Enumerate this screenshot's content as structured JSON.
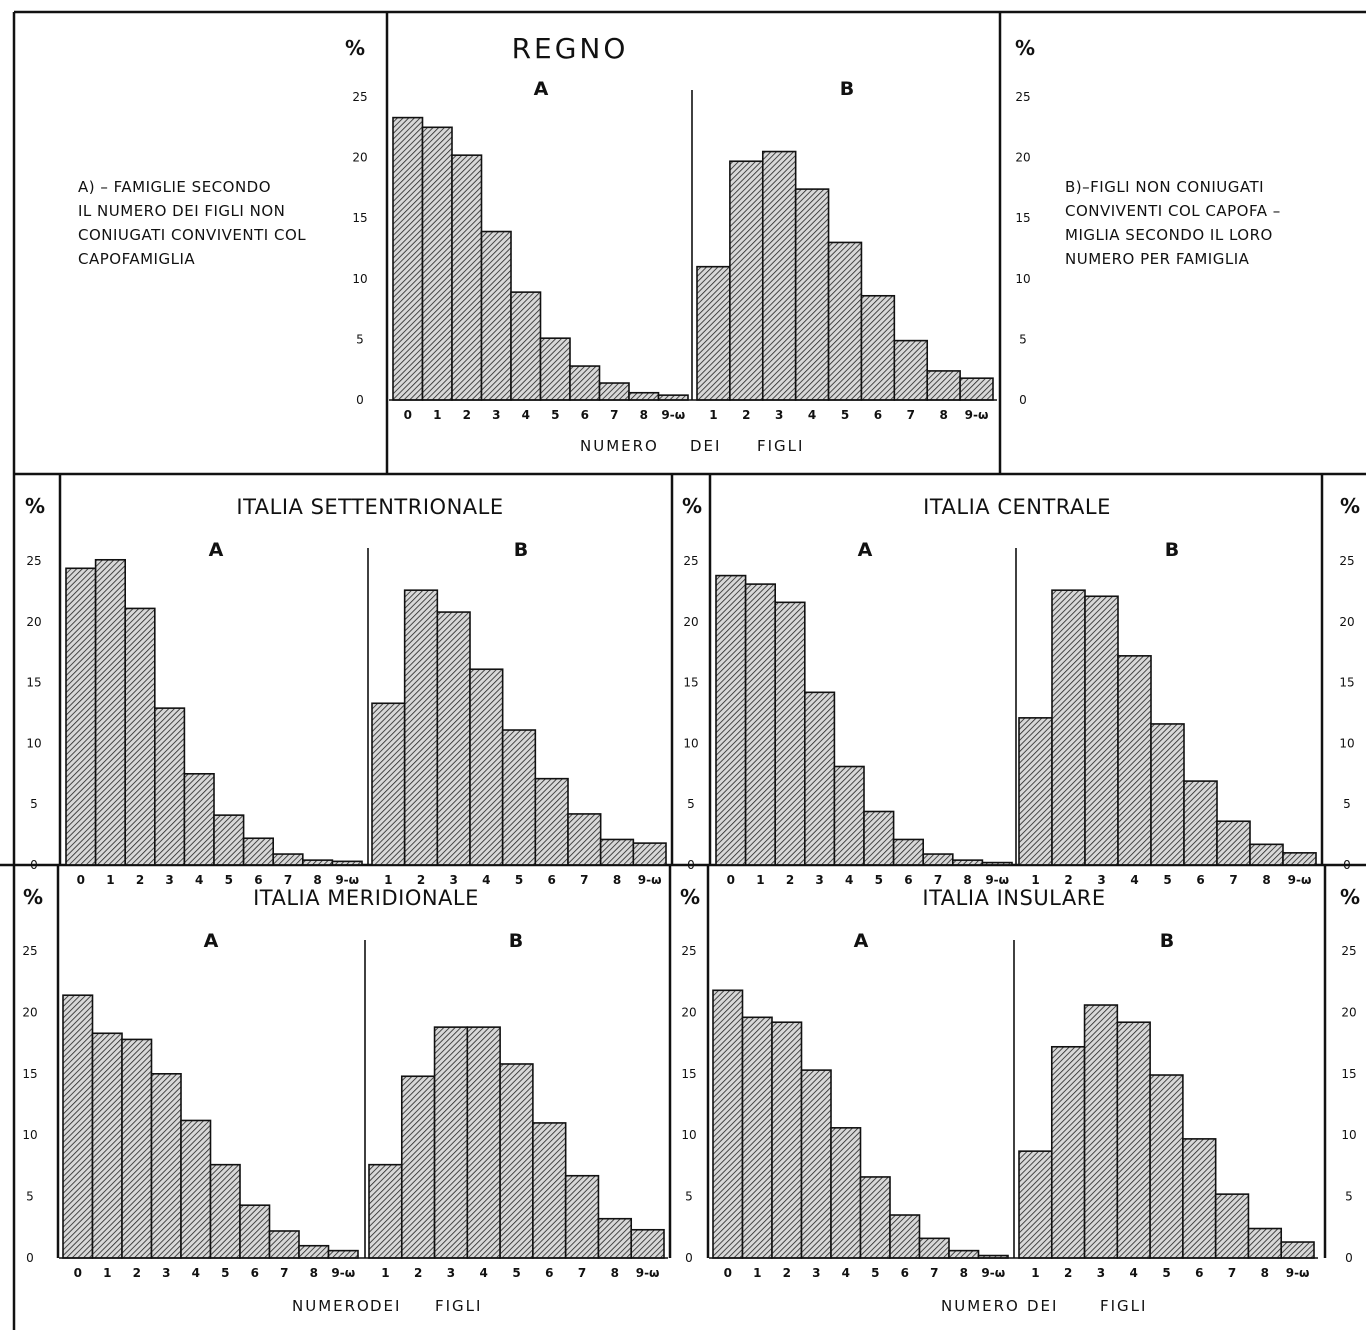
{
  "legend_a": [
    "A) – FAMIGLIE   SECONDO",
    "IL NUMERO DEI FIGLI NON",
    "CONIUGATI CONVIVENTI COL",
    "CAPOFAMIGLIA"
  ],
  "legend_b": [
    "B)–FIGLI  NON  CONIUGATI",
    "CONVIVENTI COL CAPOFA –",
    "MIGLIA SECONDO IL LORO",
    "NUMERO PER FAMIGLIA"
  ],
  "percent_symbol": "%",
  "xlabel_words": [
    "NUMERO",
    "DEI",
    "FIGLI"
  ],
  "y_ticks": [
    "0",
    "5",
    "10",
    "15",
    "20",
    "25"
  ],
  "chart_data": [
    {
      "id": "regno",
      "type": "bar",
      "title": "REGNO",
      "ylim": [
        0,
        25
      ],
      "xlabel": "NUMERO DEI FIGLI",
      "series": [
        {
          "name": "A",
          "categories": [
            "0",
            "1",
            "2",
            "3",
            "4",
            "5",
            "6",
            "7",
            "8",
            "9-ω"
          ],
          "values": [
            23.3,
            22.5,
            20.2,
            13.9,
            8.9,
            5.1,
            2.8,
            1.4,
            0.6,
            0.4
          ]
        },
        {
          "name": "B",
          "categories": [
            "1",
            "2",
            "3",
            "4",
            "5",
            "6",
            "7",
            "8",
            "9-ω"
          ],
          "values": [
            11.0,
            19.7,
            20.5,
            17.4,
            13.0,
            8.6,
            4.9,
            2.4,
            1.8
          ]
        }
      ]
    },
    {
      "id": "settentrionale",
      "type": "bar",
      "title": "ITALIA SETTENTRIONALE",
      "ylim": [
        0,
        25
      ],
      "series": [
        {
          "name": "A",
          "categories": [
            "0",
            "1",
            "2",
            "3",
            "4",
            "5",
            "6",
            "7",
            "8",
            "9-ω"
          ],
          "values": [
            24.4,
            25.1,
            21.1,
            12.9,
            7.5,
            4.1,
            2.2,
            0.9,
            0.4,
            0.3
          ]
        },
        {
          "name": "B",
          "categories": [
            "1",
            "2",
            "3",
            "4",
            "5",
            "6",
            "7",
            "8",
            "9-ω"
          ],
          "values": [
            13.3,
            22.6,
            20.8,
            16.1,
            11.1,
            7.1,
            4.2,
            2.1,
            1.8
          ]
        }
      ]
    },
    {
      "id": "centrale",
      "type": "bar",
      "title": "ITALIA CENTRALE",
      "ylim": [
        0,
        25
      ],
      "series": [
        {
          "name": "A",
          "categories": [
            "0",
            "1",
            "2",
            "3",
            "4",
            "5",
            "6",
            "7",
            "8",
            "9-ω"
          ],
          "values": [
            23.8,
            23.1,
            21.6,
            14.2,
            8.1,
            4.4,
            2.1,
            0.9,
            0.4,
            0.2
          ]
        },
        {
          "name": "B",
          "categories": [
            "1",
            "2",
            "3",
            "4",
            "5",
            "6",
            "7",
            "8",
            "9-ω"
          ],
          "values": [
            12.1,
            22.6,
            22.1,
            17.2,
            11.6,
            6.9,
            3.6,
            1.7,
            1.0
          ]
        }
      ]
    },
    {
      "id": "meridionale",
      "type": "bar",
      "title": "ITALIA MERIDIONALE",
      "ylim": [
        0,
        25
      ],
      "xlabel": "NUMERO DEI FIGLI",
      "series": [
        {
          "name": "A",
          "categories": [
            "0",
            "1",
            "2",
            "3",
            "4",
            "5",
            "6",
            "7",
            "8",
            "9-ω"
          ],
          "values": [
            21.4,
            18.3,
            17.8,
            15.0,
            11.2,
            7.6,
            4.3,
            2.2,
            1.0,
            0.6
          ]
        },
        {
          "name": "B",
          "categories": [
            "1",
            "2",
            "3",
            "4",
            "5",
            "6",
            "7",
            "8",
            "9-ω"
          ],
          "values": [
            7.6,
            14.8,
            18.8,
            18.8,
            15.8,
            11.0,
            6.7,
            3.2,
            2.3
          ]
        }
      ]
    },
    {
      "id": "insulare",
      "type": "bar",
      "title": "ITALIA  INSULARE",
      "ylim": [
        0,
        25
      ],
      "xlabel": "NUMERO DEI FIGLI",
      "series": [
        {
          "name": "A",
          "categories": [
            "0",
            "1",
            "2",
            "3",
            "4",
            "5",
            "6",
            "7",
            "8",
            "9-ω"
          ],
          "values": [
            21.8,
            19.6,
            19.2,
            15.3,
            10.6,
            6.6,
            3.5,
            1.6,
            0.6,
            0.2
          ]
        },
        {
          "name": "B",
          "categories": [
            "1",
            "2",
            "3",
            "4",
            "5",
            "6",
            "7",
            "8",
            "9-ω"
          ],
          "values": [
            8.7,
            17.2,
            20.6,
            19.2,
            14.9,
            9.7,
            5.2,
            2.4,
            1.3
          ]
        }
      ]
    }
  ]
}
